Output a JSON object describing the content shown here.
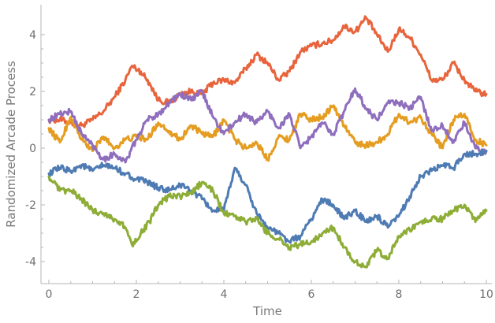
{
  "chart_data": {
    "type": "line",
    "title": "",
    "xlabel": "Time",
    "ylabel": "Randomized Arcade Process",
    "xlim": [
      0,
      10
    ],
    "ylim": [
      -4.6,
      5.0
    ],
    "x_ticks": [
      0,
      2,
      4,
      6,
      8,
      10
    ],
    "y_ticks": [
      -4,
      -2,
      0,
      2,
      4
    ],
    "x_tick_labels": [
      "0",
      "2",
      "4",
      "6",
      "8",
      "10"
    ],
    "y_tick_labels": [
      "-4",
      "-2",
      "0",
      "2",
      "4"
    ],
    "grid": false,
    "legend": "none",
    "series": [
      {
        "color": "#e8643c",
        "x": [
          0,
          0.25,
          0.5,
          0.75,
          1.0,
          1.25,
          1.5,
          1.75,
          1.9,
          2.1,
          2.3,
          2.5,
          2.75,
          3.0,
          3.25,
          3.5,
          3.75,
          4.0,
          4.25,
          4.5,
          4.75,
          5.0,
          5.25,
          5.5,
          5.75,
          6.0,
          6.25,
          6.5,
          6.75,
          7.0,
          7.25,
          7.5,
          7.75,
          8.0,
          8.25,
          8.5,
          8.75,
          9.0,
          9.25,
          9.5,
          9.75,
          10.0
        ],
        "values": [
          1.0,
          1.0,
          0.9,
          0.8,
          1.0,
          1.3,
          1.8,
          2.4,
          2.9,
          2.7,
          2.3,
          1.7,
          1.6,
          1.9,
          2.0,
          1.9,
          2.3,
          2.4,
          2.3,
          2.8,
          3.3,
          3.0,
          2.4,
          2.7,
          3.4,
          3.6,
          3.7,
          3.8,
          4.3,
          4.1,
          4.6,
          4.0,
          3.4,
          4.2,
          3.9,
          3.3,
          2.4,
          2.4,
          3.0,
          2.4,
          2.0,
          1.9
        ]
      },
      {
        "color": "#e59d21",
        "x": [
          0,
          0.25,
          0.5,
          0.75,
          1.0,
          1.25,
          1.5,
          1.75,
          2.0,
          2.25,
          2.5,
          2.75,
          3.0,
          3.25,
          3.5,
          3.75,
          4.0,
          4.25,
          4.5,
          4.75,
          5.0,
          5.25,
          5.5,
          5.75,
          6.0,
          6.25,
          6.5,
          6.75,
          7.0,
          7.25,
          7.5,
          7.75,
          8.0,
          8.25,
          8.5,
          8.75,
          9.0,
          9.25,
          9.5,
          9.75,
          10.0
        ],
        "values": [
          0.7,
          0.2,
          1.1,
          0.3,
          -0.1,
          0.4,
          0.0,
          0.3,
          0.4,
          0.3,
          0.9,
          0.6,
          0.3,
          0.8,
          0.5,
          0.4,
          1.0,
          0.3,
          0.0,
          0.2,
          -0.4,
          0.4,
          0.3,
          1.2,
          1.0,
          1.1,
          1.5,
          0.8,
          0.2,
          0.1,
          0.2,
          0.5,
          1.2,
          0.9,
          1.1,
          0.5,
          0.0,
          1.0,
          1.2,
          0.3,
          0.1
        ]
      },
      {
        "color": "#8f6ebd",
        "x": [
          0,
          0.25,
          0.5,
          0.75,
          1.0,
          1.25,
          1.5,
          1.75,
          2.0,
          2.25,
          2.5,
          2.75,
          3.0,
          3.25,
          3.5,
          3.75,
          4.0,
          4.25,
          4.5,
          4.75,
          5.0,
          5.25,
          5.5,
          5.75,
          6.0,
          6.25,
          6.5,
          6.75,
          7.0,
          7.25,
          7.5,
          7.75,
          8.0,
          8.25,
          8.5,
          8.75,
          9.0,
          9.25,
          9.5,
          9.75,
          10.0
        ],
        "values": [
          1.0,
          1.2,
          1.3,
          0.5,
          0.1,
          -0.4,
          -0.2,
          -0.5,
          0.3,
          1.0,
          1.2,
          1.6,
          1.9,
          1.7,
          2.0,
          1.1,
          0.5,
          0.9,
          1.2,
          0.9,
          1.3,
          0.7,
          1.2,
          0.0,
          0.4,
          0.9,
          0.5,
          1.3,
          2.1,
          1.4,
          1.0,
          1.6,
          1.6,
          1.4,
          1.8,
          0.6,
          0.8,
          0.2,
          0.9,
          0.0,
          -0.1
        ]
      },
      {
        "color": "#4e7bb3",
        "x": [
          0,
          0.25,
          0.5,
          0.75,
          1.0,
          1.25,
          1.5,
          1.75,
          2.0,
          2.25,
          2.5,
          2.75,
          3.0,
          3.25,
          3.5,
          3.75,
          4.0,
          4.25,
          4.5,
          4.75,
          5.0,
          5.25,
          5.5,
          5.75,
          6.0,
          6.25,
          6.5,
          6.75,
          7.0,
          7.25,
          7.5,
          7.75,
          8.0,
          8.25,
          8.5,
          8.75,
          9.0,
          9.25,
          9.5,
          9.75,
          10.0
        ],
        "values": [
          -0.9,
          -0.7,
          -0.8,
          -0.6,
          -0.8,
          -0.6,
          -0.7,
          -0.9,
          -1.1,
          -1.2,
          -1.4,
          -1.5,
          -1.3,
          -1.5,
          -1.8,
          -2.2,
          -2.2,
          -0.7,
          -1.3,
          -2.3,
          -2.8,
          -3.0,
          -3.3,
          -3.1,
          -2.5,
          -1.8,
          -2.0,
          -2.5,
          -2.2,
          -2.6,
          -2.4,
          -2.8,
          -2.4,
          -1.7,
          -1.0,
          -0.8,
          -0.6,
          -0.7,
          -0.2,
          -0.2,
          -0.1
        ]
      },
      {
        "color": "#8dad36",
        "x": [
          0,
          0.25,
          0.5,
          0.75,
          1.0,
          1.25,
          1.5,
          1.75,
          1.9,
          2.1,
          2.3,
          2.5,
          2.75,
          3.0,
          3.25,
          3.5,
          3.75,
          4.0,
          4.25,
          4.5,
          4.75,
          5.0,
          5.25,
          5.5,
          5.75,
          6.0,
          6.25,
          6.5,
          6.75,
          7.0,
          7.25,
          7.5,
          7.75,
          8.0,
          8.25,
          8.5,
          8.75,
          9.0,
          9.25,
          9.5,
          9.75,
          10.0
        ],
        "values": [
          -1.0,
          -1.5,
          -1.5,
          -1.8,
          -2.2,
          -2.3,
          -2.5,
          -2.8,
          -3.4,
          -3.0,
          -2.6,
          -2.0,
          -1.7,
          -1.7,
          -1.6,
          -1.2,
          -1.5,
          -2.3,
          -2.4,
          -2.6,
          -2.5,
          -3.0,
          -3.2,
          -3.5,
          -3.4,
          -3.3,
          -3.0,
          -2.8,
          -3.5,
          -4.0,
          -4.2,
          -3.6,
          -3.9,
          -3.1,
          -2.9,
          -2.6,
          -2.5,
          -2.5,
          -2.2,
          -2.0,
          -2.6,
          -2.2
        ]
      }
    ]
  }
}
